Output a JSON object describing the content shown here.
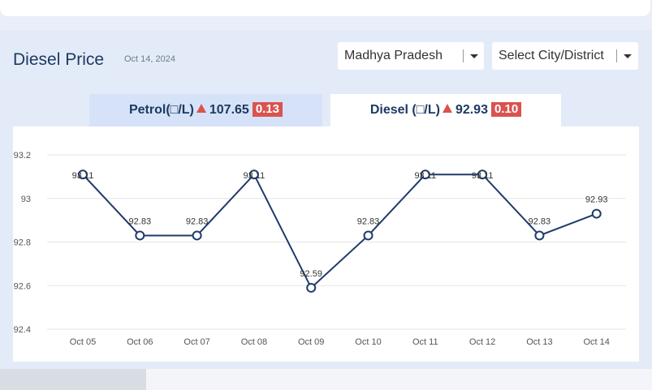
{
  "header": {
    "title": "Diesel Price",
    "date": "Oct 14, 2024",
    "state_select": "Madhya Pradesh",
    "city_select": "Select City/District"
  },
  "tabs": {
    "petrol": {
      "label": "Petrol(□/L)",
      "price": "107.65",
      "change": "0.13"
    },
    "diesel": {
      "label": "Diesel (□/L)",
      "price": "92.93",
      "change": "0.10"
    }
  },
  "colors": {
    "line": "#1f3a6b",
    "up": "#d9534f",
    "grid": "#e6e6e6"
  },
  "chart_data": {
    "type": "line",
    "categories": [
      "Oct 05",
      "Oct 06",
      "Oct 07",
      "Oct 08",
      "Oct 09",
      "Oct 10",
      "Oct 11",
      "Oct 12",
      "Oct 13",
      "Oct 14"
    ],
    "values": [
      93.11,
      92.83,
      92.83,
      93.11,
      92.59,
      92.83,
      93.11,
      93.11,
      92.83,
      92.93
    ],
    "data_labels": [
      "93.11",
      "92.83",
      "92.83",
      "93.11",
      "92.59",
      "92.83",
      "93.11",
      "93.11",
      "92.83",
      "92.93"
    ],
    "yticks": [
      "93.2",
      "93",
      "92.8",
      "92.6",
      "92.4"
    ],
    "ylim": [
      92.4,
      93.2
    ],
    "grid": true
  }
}
